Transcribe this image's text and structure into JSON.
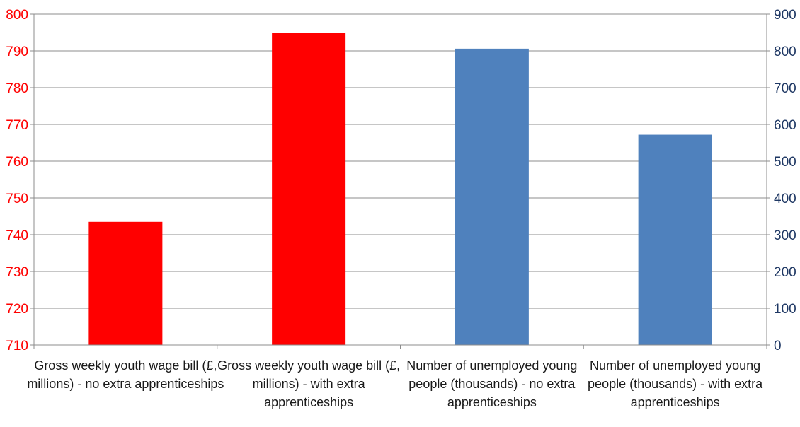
{
  "chart_data": {
    "type": "bar",
    "categories": [
      [
        "Gross weekly youth wage bill (£,",
        "millions) - no extra apprenticeships"
      ],
      [
        "Gross weekly youth wage bill (£,",
        "millions) - with extra",
        "apprenticeships"
      ],
      [
        "Number of unemployed young",
        "people (thousands) - no extra",
        "apprenticeships"
      ],
      [
        "Number of unemployed young",
        "people (thousands) - with extra",
        "apprenticeships"
      ]
    ],
    "series": [
      {
        "axis": "left",
        "color": "#ff0000",
        "values": [
          743.5,
          795,
          null,
          null
        ]
      },
      {
        "axis": "right",
        "color": "#4f81bd",
        "values": [
          null,
          null,
          806,
          572
        ]
      }
    ],
    "y_left": {
      "min": 710,
      "max": 800,
      "step": 10,
      "color": "#ff0000"
    },
    "y_right": {
      "min": 0,
      "max": 900,
      "step": 100,
      "color": "#1f3864"
    },
    "grid": true,
    "legend": "none",
    "title": ""
  }
}
